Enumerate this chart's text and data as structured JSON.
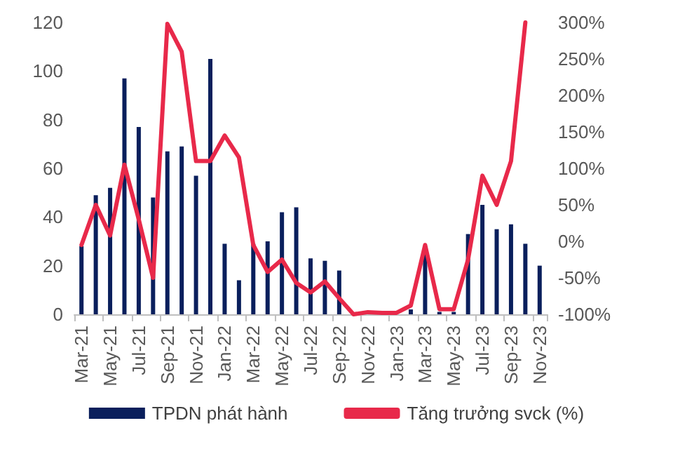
{
  "chart_data": {
    "type": "bar",
    "categories": [
      "Mar-21",
      null,
      "May-21",
      null,
      "Jul-21",
      null,
      "Sep-21",
      null,
      "Nov-21",
      null,
      "Jan-22",
      null,
      "Mar-22",
      null,
      "May-22",
      null,
      "Jul-22",
      null,
      "Sep-22",
      null,
      "Nov-22",
      null,
      "Jan-23",
      null,
      "Mar-23",
      null,
      "May-23",
      null,
      "Jul-23",
      null,
      "Sep-23",
      null,
      "Nov-23"
    ],
    "series": [
      {
        "name": "TPDN phát hành",
        "color": "#0a1f5c",
        "values": [
          28,
          49,
          52,
          97,
          77,
          48,
          67,
          69,
          57,
          105,
          29,
          14,
          29,
          30,
          42,
          44,
          23,
          22,
          18,
          0,
          0,
          0,
          0,
          2,
          25,
          1,
          1,
          33,
          45,
          35,
          37,
          29,
          20
        ]
      },
      {
        "name": "Tăng trưởng svck (%)",
        "type": "line",
        "axis": "y2",
        "color": "#e8294a",
        "values": [
          -5,
          50,
          8,
          105,
          30,
          -50,
          298,
          260,
          110,
          110,
          145,
          115,
          -5,
          -42,
          -25,
          -57,
          -70,
          -55,
          -78,
          -100,
          -97,
          -98,
          -98,
          -88,
          -5,
          -93,
          -93,
          -25,
          90,
          50,
          110,
          300,
          null
        ]
      }
    ],
    "ylim": [
      0,
      120
    ],
    "yticks": [
      0,
      20,
      40,
      60,
      80,
      100,
      120
    ],
    "y2lim": [
      -100,
      300
    ],
    "y2ticks": [
      {
        "value": -100,
        "label": "-100%"
      },
      {
        "value": -50,
        "label": "-50%"
      },
      {
        "value": 0,
        "label": "0%"
      },
      {
        "value": 50,
        "label": "50%"
      },
      {
        "value": 100,
        "label": "100%"
      },
      {
        "value": 150,
        "label": "150%"
      },
      {
        "value": 200,
        "label": "200%"
      },
      {
        "value": 250,
        "label": "250%"
      },
      {
        "value": 300,
        "label": "300%"
      }
    ],
    "grid": false,
    "legend": "bottom",
    "marker": "none"
  }
}
